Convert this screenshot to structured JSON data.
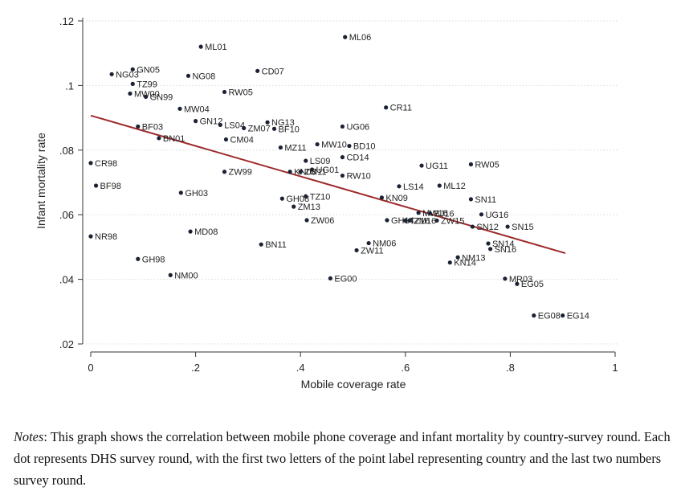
{
  "chart_data": {
    "type": "scatter",
    "title": "",
    "xlabel": "Mobile coverage rate",
    "ylabel": "Infant mortality rate",
    "xlim": [
      0,
      1
    ],
    "ylim": [
      0.02,
      0.12
    ],
    "xticks": [
      0,
      0.2,
      0.4,
      0.6,
      0.8,
      1
    ],
    "xtick_labels": [
      "0",
      ".2",
      ".4",
      ".6",
      ".8",
      "1"
    ],
    "yticks": [
      0.02,
      0.04,
      0.06,
      0.08,
      0.1,
      0.12
    ],
    "ytick_labels": [
      ".02",
      ".04",
      ".06",
      ".08",
      ".1",
      ".12"
    ],
    "grid": "horizontal-dotted",
    "fit_line": {
      "x": [
        0,
        0.905
      ],
      "y": [
        0.0907,
        0.0481
      ]
    },
    "points": [
      {
        "label": "ML06",
        "x": 0.485,
        "y": 0.115
      },
      {
        "label": "ML01",
        "x": 0.21,
        "y": 0.112
      },
      {
        "label": "CD07",
        "x": 0.318,
        "y": 0.1045
      },
      {
        "label": "GN05",
        "x": 0.08,
        "y": 0.105
      },
      {
        "label": "NG03",
        "x": 0.04,
        "y": 0.1035
      },
      {
        "label": "NG08",
        "x": 0.186,
        "y": 0.103
      },
      {
        "label": "TZ99",
        "x": 0.08,
        "y": 0.1005
      },
      {
        "label": "MW00",
        "x": 0.075,
        "y": 0.0975
      },
      {
        "label": "GN99",
        "x": 0.105,
        "y": 0.0965
      },
      {
        "label": "RW05",
        "x": 0.255,
        "y": 0.098
      },
      {
        "label": "MW04",
        "x": 0.17,
        "y": 0.0928
      },
      {
        "label": "CR11",
        "x": 0.563,
        "y": 0.0932
      },
      {
        "label": "GN12",
        "x": 0.2,
        "y": 0.089
      },
      {
        "label": "LS04",
        "x": 0.247,
        "y": 0.0878
      },
      {
        "label": "NG13",
        "x": 0.337,
        "y": 0.0886
      },
      {
        "label": "ZM07",
        "x": 0.292,
        "y": 0.0868
      },
      {
        "label": "BF10",
        "x": 0.35,
        "y": 0.0866
      },
      {
        "label": "UG06",
        "x": 0.48,
        "y": 0.0873
      },
      {
        "label": "BF03",
        "x": 0.09,
        "y": 0.0873
      },
      {
        "label": "BN01",
        "x": 0.13,
        "y": 0.0837
      },
      {
        "label": "CM04",
        "x": 0.258,
        "y": 0.0833
      },
      {
        "label": "MZ11",
        "x": 0.362,
        "y": 0.0808
      },
      {
        "label": "MW10",
        "x": 0.432,
        "y": 0.0818
      },
      {
        "label": "BD10",
        "x": 0.493,
        "y": 0.0813
      },
      {
        "label": "CD14",
        "x": 0.48,
        "y": 0.0778
      },
      {
        "label": "LS09",
        "x": 0.41,
        "y": 0.0767
      },
      {
        "label": "UG01",
        "x": 0.422,
        "y": 0.074
      },
      {
        "label": "KN03",
        "x": 0.38,
        "y": 0.0733
      },
      {
        "label": "ZM11",
        "x": 0.4,
        "y": 0.0733
      },
      {
        "label": "RW10",
        "x": 0.48,
        "y": 0.0721
      },
      {
        "label": "UG11",
        "x": 0.631,
        "y": 0.0752
      },
      {
        "label": "RW05",
        "x": 0.725,
        "y": 0.0756
      },
      {
        "label": "CR98",
        "x": 0.0,
        "y": 0.076
      },
      {
        "label": "ZW99",
        "x": 0.255,
        "y": 0.0733
      },
      {
        "label": "LS14",
        "x": 0.588,
        "y": 0.0688
      },
      {
        "label": "ML12",
        "x": 0.665,
        "y": 0.069
      },
      {
        "label": "BF98",
        "x": 0.01,
        "y": 0.069
      },
      {
        "label": "GH03",
        "x": 0.172,
        "y": 0.0668
      },
      {
        "label": "TZ10",
        "x": 0.41,
        "y": 0.0657
      },
      {
        "label": "GH08",
        "x": 0.365,
        "y": 0.065
      },
      {
        "label": "ZM13",
        "x": 0.387,
        "y": 0.0625
      },
      {
        "label": "KN09",
        "x": 0.555,
        "y": 0.0653
      },
      {
        "label": "SN11",
        "x": 0.725,
        "y": 0.0648
      },
      {
        "label": "UG16",
        "x": 0.745,
        "y": 0.0601
      },
      {
        "label": "ZW06",
        "x": 0.412,
        "y": 0.0583
      },
      {
        "label": "GH14",
        "x": 0.565,
        "y": 0.0583
      },
      {
        "label": "TZ16",
        "x": 0.6,
        "y": 0.0582
      },
      {
        "label": "ZM16",
        "x": 0.608,
        "y": 0.0582
      },
      {
        "label": "MW16",
        "x": 0.625,
        "y": 0.0606
      },
      {
        "label": "BJ16",
        "x": 0.647,
        "y": 0.0604
      },
      {
        "label": "ZW15",
        "x": 0.66,
        "y": 0.0582
      },
      {
        "label": "SN12",
        "x": 0.728,
        "y": 0.0563
      },
      {
        "label": "SN15",
        "x": 0.795,
        "y": 0.0563
      },
      {
        "label": "MD08",
        "x": 0.19,
        "y": 0.0548
      },
      {
        "label": "NR98",
        "x": 0.0,
        "y": 0.0533
      },
      {
        "label": "BN11",
        "x": 0.325,
        "y": 0.0508
      },
      {
        "label": "NM06",
        "x": 0.53,
        "y": 0.0512
      },
      {
        "label": "ZW11",
        "x": 0.507,
        "y": 0.049
      },
      {
        "label": "SN14",
        "x": 0.758,
        "y": 0.0511
      },
      {
        "label": "SN16",
        "x": 0.762,
        "y": 0.0494
      },
      {
        "label": "NM13",
        "x": 0.7,
        "y": 0.0468
      },
      {
        "label": "KN14",
        "x": 0.685,
        "y": 0.0452
      },
      {
        "label": "GH98",
        "x": 0.09,
        "y": 0.0463
      },
      {
        "label": "NM00",
        "x": 0.152,
        "y": 0.0413
      },
      {
        "label": "EG00",
        "x": 0.457,
        "y": 0.0403
      },
      {
        "label": "MR03",
        "x": 0.79,
        "y": 0.0402
      },
      {
        "label": "EG05",
        "x": 0.813,
        "y": 0.0386
      },
      {
        "label": "EG08",
        "x": 0.845,
        "y": 0.0288
      },
      {
        "label": "EG14",
        "x": 0.9,
        "y": 0.0288
      }
    ],
    "colors": {
      "markers": "#1a2233",
      "fit_line": "#9e2a2b",
      "grid": "#d9d9d9"
    }
  },
  "notes": {
    "label": "Notes",
    "text": ": This graph shows the correlation between mobile phone coverage and infant mortality by country-survey round. Each dot represents DHS survey round, with the first two letters of the point label representing country and the last two numbers survey round."
  }
}
